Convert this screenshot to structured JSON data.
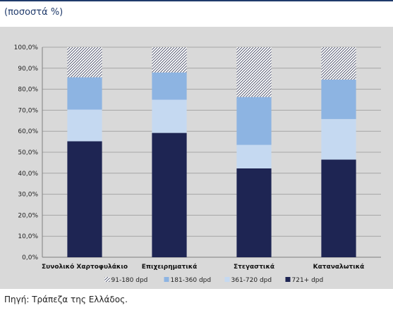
{
  "header": {
    "subtitle": "(ποσοστά %)"
  },
  "footer": {
    "source": "Πηγή: Τράπεζα της Ελλάδος."
  },
  "chart_data": {
    "type": "bar",
    "stacked": true,
    "categories": [
      "Συνολικό Χαρτοφυλάκιο",
      "Επιχειρηματικά",
      "Στεγαστικά",
      "Καταναλωτικά"
    ],
    "ylim": [
      0,
      100
    ],
    "yticks": [
      0,
      10,
      20,
      30,
      40,
      50,
      60,
      70,
      80,
      90,
      100
    ],
    "ytick_labels": [
      "0,0%",
      "10,0%",
      "20,0%",
      "30,0%",
      "40,0%",
      "50,0%",
      "60,0%",
      "70,0%",
      "80,0%",
      "90,0%",
      "100,0%"
    ],
    "grid": true,
    "legend_position": "bottom",
    "series": [
      {
        "name": "721+ dpd",
        "color": "#1e2553",
        "pattern": "solid",
        "values": [
          55.2,
          59.2,
          42.3,
          46.5
        ]
      },
      {
        "name": "361-720 dpd",
        "color": "#c5d9f1",
        "pattern": "solid",
        "values": [
          15.1,
          15.8,
          11.2,
          19.3
        ]
      },
      {
        "name": "181-360 dpd",
        "color": "#8db4e2",
        "pattern": "solid",
        "values": [
          15.4,
          13.0,
          22.8,
          18.8
        ]
      },
      {
        "name": "91-180 dpd",
        "color": "#ffffff",
        "pattern": "hatch",
        "values": [
          14.3,
          12.0,
          23.7,
          15.4
        ]
      }
    ],
    "legend_order": [
      "91-180 dpd",
      "181-360 dpd",
      "361-720 dpd",
      "721+ dpd"
    ]
  }
}
